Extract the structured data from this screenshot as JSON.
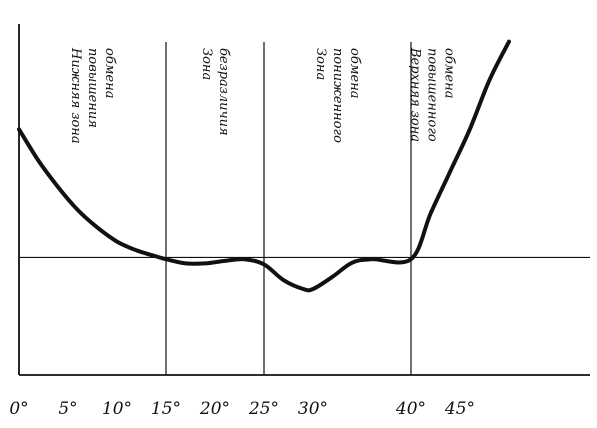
{
  "chart_data": {
    "type": "line",
    "title": "",
    "xlabel": "",
    "ylabel": "",
    "grid": false,
    "xlim": [
      0,
      50
    ],
    "ylim": [
      0,
      10
    ],
    "x_tick_labels": [
      {
        "x": 0,
        "label": "0°"
      },
      {
        "x": 5,
        "label": "5°"
      },
      {
        "x": 10,
        "label": "10°"
      },
      {
        "x": 15,
        "label": "15°"
      },
      {
        "x": 20,
        "label": "20°"
      },
      {
        "x": 25,
        "label": "25°"
      },
      {
        "x": 30,
        "label": "30°"
      },
      {
        "x": 40,
        "label": "40°"
      },
      {
        "x": 45,
        "label": "45°"
      }
    ],
    "boundaries": [
      15,
      25,
      40
    ],
    "baseline": 3.35,
    "series": [
      {
        "x": [
          0,
          2,
          4,
          6,
          8,
          10,
          12,
          14,
          15,
          17,
          19,
          21,
          23,
          25,
          27,
          29,
          30,
          32,
          34,
          36,
          40,
          42,
          44,
          46,
          48,
          50
        ],
        "y": [
          7.0,
          6.1,
          5.35,
          4.7,
          4.2,
          3.8,
          3.55,
          3.38,
          3.3,
          3.18,
          3.18,
          3.25,
          3.3,
          3.15,
          2.7,
          2.45,
          2.45,
          2.8,
          3.2,
          3.3,
          3.3,
          4.6,
          5.8,
          7.0,
          8.4,
          9.5
        ]
      }
    ],
    "zones": [
      {
        "lines": [
          "Нижняя зона",
          "повышения",
          "обмена"
        ],
        "from": 0,
        "to": 15
      },
      {
        "lines": [
          "Зона",
          "безразличия"
        ],
        "from": 15,
        "to": 25
      },
      {
        "lines": [
          "Зона",
          "пониженного",
          "обмена"
        ],
        "from": 25,
        "to": 40
      },
      {
        "lines": [
          "Верхняя зона",
          "повышенного",
          "обмена"
        ],
        "from": 40,
        "to": 50
      }
    ]
  }
}
